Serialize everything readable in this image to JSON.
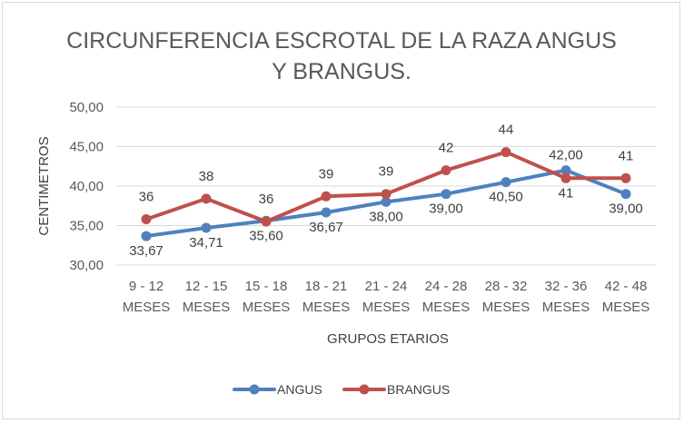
{
  "chart_data": {
    "type": "line",
    "title_lines": [
      "CIRCUNFERENCIA ESCROTAL DE LA RAZA  ANGUS",
      "Y BRANGUS."
    ],
    "xlabel": "GRUPOS ETARIOS",
    "ylabel": "CENTIMETROS",
    "ylim": [
      30,
      50
    ],
    "yticks": [
      "30,00",
      "35,00",
      "40,00",
      "45,00",
      "50,00"
    ],
    "categories": [
      [
        "9 - 12",
        "MESES"
      ],
      [
        "12 - 15",
        "MESES"
      ],
      [
        "15 - 18",
        "MESES"
      ],
      [
        "18 - 21",
        "MESES"
      ],
      [
        "21 - 24",
        "MESES"
      ],
      [
        "24 - 28",
        "MESES"
      ],
      [
        "28 - 32",
        "MESES"
      ],
      [
        "32 - 36",
        "MESES"
      ],
      [
        "42 - 48",
        "MESES"
      ]
    ],
    "grid": true,
    "legend_position": "bottom",
    "series": [
      {
        "name": "ANGUS",
        "color": "#4f81bd",
        "values": [
          33.67,
          34.71,
          35.6,
          36.67,
          38.0,
          39.0,
          40.5,
          42.0,
          39.0
        ],
        "labels": [
          "33,67",
          "34,71",
          "35,60",
          "36,67",
          "38,00",
          "39,00",
          "40,50",
          "42,00",
          "39,00"
        ]
      },
      {
        "name": "BRANGUS",
        "color": "#c0504d",
        "values": [
          35.8,
          38.4,
          35.5,
          38.7,
          39.0,
          42.0,
          44.3,
          41.0,
          41.0
        ],
        "labels": [
          "36",
          "38",
          "36",
          "39",
          "39",
          "42",
          "44",
          "41",
          "41"
        ]
      }
    ]
  }
}
